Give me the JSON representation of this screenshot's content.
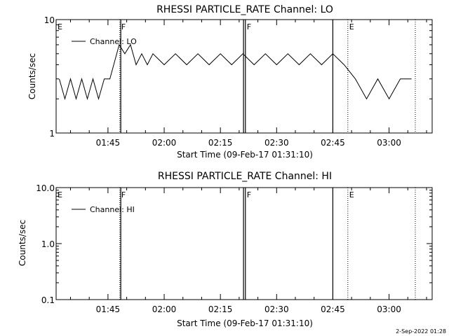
{
  "chart_data": [
    {
      "type": "line",
      "title": "RHESSI PARTICLE_RATE Channel: LO",
      "xlabel": "Start Time (09-Feb-17 01:31:10)",
      "ylabel": "Counts/sec",
      "y_scale": "log",
      "ylim": [
        1,
        10
      ],
      "ytick_labels": [
        "1",
        "10"
      ],
      "xlim": [
        "01:31:10",
        "03:11:30"
      ],
      "xtick_labels": [
        "01:45",
        "02:00",
        "02:15",
        "02:30",
        "02:45",
        "03:00"
      ],
      "legend": "top-left",
      "series": [
        {
          "name": "Channel: LO",
          "x": [
            "01:32:00",
            "01:33:30",
            "01:35:00",
            "01:36:30",
            "01:38:00",
            "01:39:30",
            "01:41:00",
            "01:42:30",
            "01:44:00",
            "01:45:30",
            "01:48:00",
            "01:49:30",
            "01:51:00",
            "01:52:30",
            "01:54:00",
            "01:55:30",
            "01:57:00",
            "02:00:00",
            "02:03:00",
            "02:06:00",
            "02:09:00",
            "02:12:00",
            "02:15:00",
            "02:18:00",
            "02:21:00",
            "02:24:00",
            "02:27:00",
            "02:30:00",
            "02:33:00",
            "02:36:00",
            "02:39:00",
            "02:42:00",
            "02:45:00",
            "02:48:00",
            "02:51:00",
            "02:54:00",
            "02:57:00",
            "03:00:00",
            "03:03:00",
            "03:06:00"
          ],
          "y": [
            3,
            2,
            3,
            2,
            3,
            2,
            3,
            2,
            3,
            3,
            6,
            5,
            6,
            4,
            5,
            4,
            5,
            4,
            5,
            4,
            5,
            4,
            5,
            4,
            5,
            4,
            5,
            4,
            5,
            4,
            5,
            4,
            5,
            4,
            3,
            2,
            3,
            2,
            3,
            3
          ]
        }
      ],
      "markers": [
        {
          "label": "E",
          "time": "01:31:10",
          "style": "dotted"
        },
        {
          "label": "F",
          "time": "01:48:10",
          "style": "dotted"
        },
        {
          "label": "",
          "time": "01:48:25",
          "style": "solid"
        },
        {
          "label": "",
          "time": "02:21:10",
          "style": "solid"
        },
        {
          "label": "F",
          "time": "02:21:40",
          "style": "solid"
        },
        {
          "label": "",
          "time": "02:45:00",
          "style": "solid"
        },
        {
          "label": "E",
          "time": "02:49:00",
          "style": "dotted"
        },
        {
          "label": "",
          "time": "03:07:00",
          "style": "dotted"
        }
      ]
    },
    {
      "type": "line",
      "title": "RHESSI PARTICLE_RATE Channel: HI",
      "xlabel": "Start Time (09-Feb-17 01:31:10)",
      "ylabel": "Counts/sec",
      "y_scale": "log",
      "ylim": [
        0.1,
        10
      ],
      "ytick_labels": [
        "0.1",
        "1.0",
        "10.0"
      ],
      "xlim": [
        "01:31:10",
        "03:11:30"
      ],
      "xtick_labels": [
        "01:45",
        "02:00",
        "02:15",
        "02:30",
        "02:45",
        "03:00"
      ],
      "legend": "top-left",
      "series": [
        {
          "name": "Channel: HI",
          "x": [],
          "y": []
        }
      ],
      "markers": [
        {
          "label": "E",
          "time": "01:31:10",
          "style": "dotted"
        },
        {
          "label": "F",
          "time": "01:48:10",
          "style": "dotted"
        },
        {
          "label": "",
          "time": "01:48:25",
          "style": "solid"
        },
        {
          "label": "",
          "time": "02:21:10",
          "style": "solid"
        },
        {
          "label": "F",
          "time": "02:21:40",
          "style": "solid"
        },
        {
          "label": "",
          "time": "02:45:00",
          "style": "solid"
        },
        {
          "label": "E",
          "time": "02:49:00",
          "style": "dotted"
        },
        {
          "label": "",
          "time": "03:07:00",
          "style": "dotted"
        }
      ]
    }
  ],
  "footer": {
    "date_stamp": "2-Sep-2022 01:28"
  }
}
